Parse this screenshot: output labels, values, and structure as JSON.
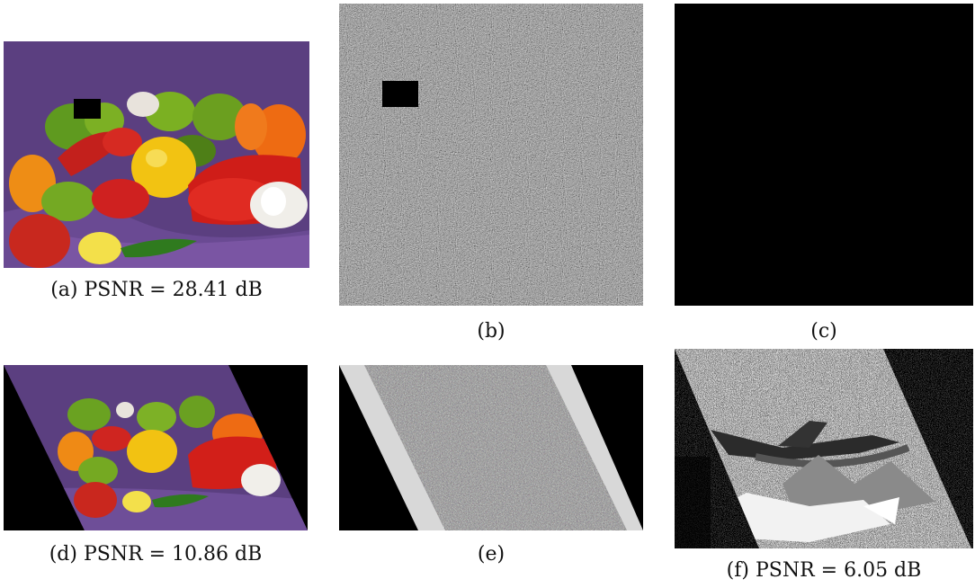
{
  "figure": {
    "panels": [
      {
        "id": "a",
        "caption": "(a) PSNR = 28.41 dB",
        "content": "peppers image with black occlusion block"
      },
      {
        "id": "b",
        "caption": "(b)",
        "content": "random noise square with black block"
      },
      {
        "id": "c",
        "caption": "(c)",
        "content": "solid black square"
      },
      {
        "id": "d",
        "caption": "(d) PSNR = 10.86 dB",
        "content": "sheared peppers image"
      },
      {
        "id": "e",
        "caption": "(e)",
        "content": "sheared noise band with light borders"
      },
      {
        "id": "f",
        "caption": "(f) PSNR = 6.05 dB",
        "content": "noisy sheared airplane image"
      }
    ],
    "colors": {
      "background_purple": "#5a3f7e",
      "pepper_red": "#d0241f",
      "pepper_green": "#6aa321",
      "pepper_orange": "#ee6a13",
      "pepper_yellow": "#f1c010",
      "noise_gray": "#8a8a8a"
    }
  }
}
